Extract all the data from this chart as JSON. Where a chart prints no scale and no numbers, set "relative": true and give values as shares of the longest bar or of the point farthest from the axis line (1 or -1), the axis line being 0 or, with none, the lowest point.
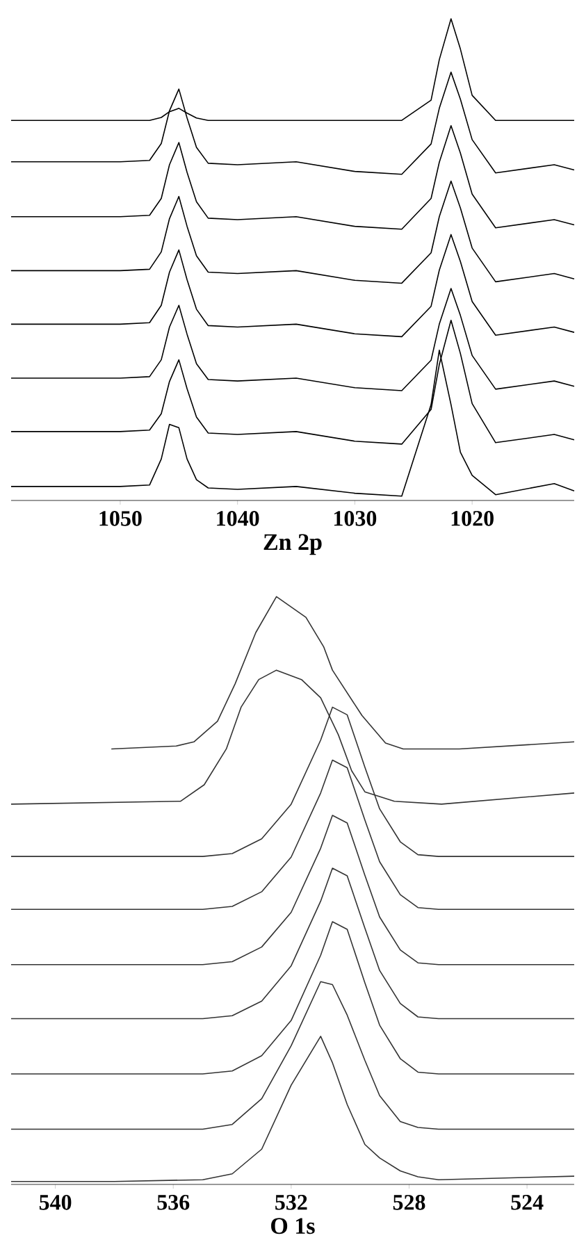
{
  "chart_data": [
    {
      "type": "line",
      "relative": true,
      "xlabel": "Zn 2p",
      "x": [
        1059.3,
        1050,
        1047.5,
        1046.5,
        1045.8,
        1045,
        1044.3,
        1043.5,
        1042.5,
        1040,
        1035,
        1030,
        1026,
        1023.5,
        1022.8,
        1021.8,
        1021,
        1020,
        1018,
        1013,
        1011.3
      ],
      "xlim": [
        1059.3,
        1011.3
      ],
      "xticks": [
        1050,
        1040,
        1030,
        1020
      ],
      "series": [
        {
          "color": "#000000",
          "values": [
            0.789,
            0.789,
            0.789,
            0.795,
            0.807,
            0.814,
            0.804,
            0.794,
            0.789,
            0.789,
            0.789,
            0.789,
            0.789,
            0.831,
            0.915,
            1.0,
            0.937,
            0.841,
            0.789,
            0.789,
            0.789
          ]
        },
        {
          "color": "#000000",
          "values": [
            0.703,
            0.703,
            0.706,
            0.741,
            0.809,
            0.854,
            0.794,
            0.733,
            0.7,
            0.697,
            0.703,
            0.683,
            0.677,
            0.74,
            0.814,
            0.889,
            0.833,
            0.749,
            0.68,
            0.697,
            0.686
          ]
        },
        {
          "color": "#000000",
          "values": [
            0.589,
            0.589,
            0.592,
            0.627,
            0.697,
            0.743,
            0.681,
            0.62,
            0.586,
            0.583,
            0.589,
            0.569,
            0.563,
            0.627,
            0.702,
            0.778,
            0.721,
            0.636,
            0.566,
            0.583,
            0.572
          ]
        },
        {
          "color": "#000000",
          "values": [
            0.477,
            0.477,
            0.48,
            0.516,
            0.585,
            0.631,
            0.569,
            0.508,
            0.474,
            0.471,
            0.477,
            0.457,
            0.451,
            0.514,
            0.589,
            0.663,
            0.607,
            0.524,
            0.454,
            0.471,
            0.46
          ]
        },
        {
          "color": "#000000",
          "values": [
            0.366,
            0.366,
            0.369,
            0.405,
            0.474,
            0.52,
            0.458,
            0.397,
            0.363,
            0.36,
            0.366,
            0.346,
            0.34,
            0.403,
            0.478,
            0.552,
            0.496,
            0.413,
            0.343,
            0.36,
            0.349
          ]
        },
        {
          "color": "#000000",
          "values": [
            0.254,
            0.254,
            0.257,
            0.292,
            0.36,
            0.405,
            0.345,
            0.284,
            0.251,
            0.248,
            0.254,
            0.234,
            0.228,
            0.291,
            0.366,
            0.44,
            0.384,
            0.301,
            0.231,
            0.248,
            0.237
          ]
        },
        {
          "color": "#000000",
          "values": [
            0.143,
            0.143,
            0.146,
            0.18,
            0.247,
            0.292,
            0.232,
            0.173,
            0.14,
            0.137,
            0.143,
            0.123,
            0.117,
            0.189,
            0.282,
            0.374,
            0.305,
            0.201,
            0.12,
            0.137,
            0.126
          ]
        },
        {
          "color": "#000000",
          "values": [
            0.029,
            0.029,
            0.032,
            0.086,
            0.158,
            0.151,
            0.086,
            0.043,
            0.026,
            0.023,
            0.029,
            0.015,
            0.009,
            0.199,
            0.312,
            0.199,
            0.1,
            0.052,
            0.012,
            0.035,
            0.02
          ]
        }
      ]
    },
    {
      "type": "line",
      "relative": true,
      "xlabel": "O 1s",
      "x": [
        541.5,
        538,
        535,
        534,
        533,
        532,
        531,
        530.6,
        530.1,
        529.5,
        529,
        528.3,
        527.7,
        527,
        522.4
      ],
      "xlim": [
        541.5,
        522.4
      ],
      "xticks": [
        540,
        536,
        532,
        528,
        524
      ],
      "series": [
        {
          "color": "#333333",
          "x": [
            538.1,
            535.9,
            535.3,
            534.5,
            533.9,
            533.2,
            532.5,
            531.5,
            530.9,
            530.6,
            529.6,
            528.8,
            528.2,
            526.3,
            522.4
          ],
          "values": [
            0.741,
            0.746,
            0.753,
            0.788,
            0.852,
            0.939,
            1.0,
            0.965,
            0.915,
            0.875,
            0.798,
            0.751,
            0.741,
            0.741,
            0.753
          ]
        },
        {
          "color": "#333333",
          "x": [
            541.5,
            535.75,
            534.95,
            534.2,
            533.7,
            533.1,
            532.5,
            531.65,
            531.0,
            530.4,
            529.95,
            529.5,
            528.5,
            526.9,
            522.4
          ],
          "values": [
            0.647,
            0.652,
            0.68,
            0.741,
            0.812,
            0.859,
            0.875,
            0.859,
            0.828,
            0.765,
            0.704,
            0.668,
            0.652,
            0.647,
            0.666
          ]
        },
        {
          "color": "#333333",
          "values": [
            0.558,
            0.558,
            0.558,
            0.563,
            0.588,
            0.647,
            0.756,
            0.812,
            0.799,
            0.71,
            0.639,
            0.583,
            0.561,
            0.558,
            0.558
          ]
        },
        {
          "color": "#333333",
          "values": [
            0.468,
            0.468,
            0.468,
            0.473,
            0.498,
            0.557,
            0.666,
            0.722,
            0.709,
            0.62,
            0.549,
            0.493,
            0.471,
            0.468,
            0.468
          ]
        },
        {
          "color": "#333333",
          "values": [
            0.374,
            0.374,
            0.374,
            0.379,
            0.404,
            0.463,
            0.572,
            0.628,
            0.615,
            0.526,
            0.455,
            0.399,
            0.377,
            0.374,
            0.374
          ]
        },
        {
          "color": "#333333",
          "values": [
            0.282,
            0.282,
            0.282,
            0.287,
            0.312,
            0.372,
            0.482,
            0.538,
            0.525,
            0.436,
            0.364,
            0.308,
            0.285,
            0.282,
            0.282
          ]
        },
        {
          "color": "#333333",
          "values": [
            0.188,
            0.188,
            0.188,
            0.193,
            0.219,
            0.279,
            0.39,
            0.447,
            0.434,
            0.343,
            0.271,
            0.214,
            0.191,
            0.188,
            0.188
          ]
        },
        {
          "color": "#333333",
          "values": [
            0.094,
            0.094,
            0.094,
            0.102,
            0.146,
            0.236,
            0.345,
            0.34,
            0.288,
            0.211,
            0.151,
            0.107,
            0.097,
            0.094,
            0.094
          ]
        },
        {
          "color": "#333333",
          "values": [
            0.005,
            0.005,
            0.008,
            0.018,
            0.06,
            0.169,
            0.252,
            0.207,
            0.136,
            0.068,
            0.045,
            0.023,
            0.013,
            0.008,
            0.014
          ]
        }
      ]
    }
  ]
}
